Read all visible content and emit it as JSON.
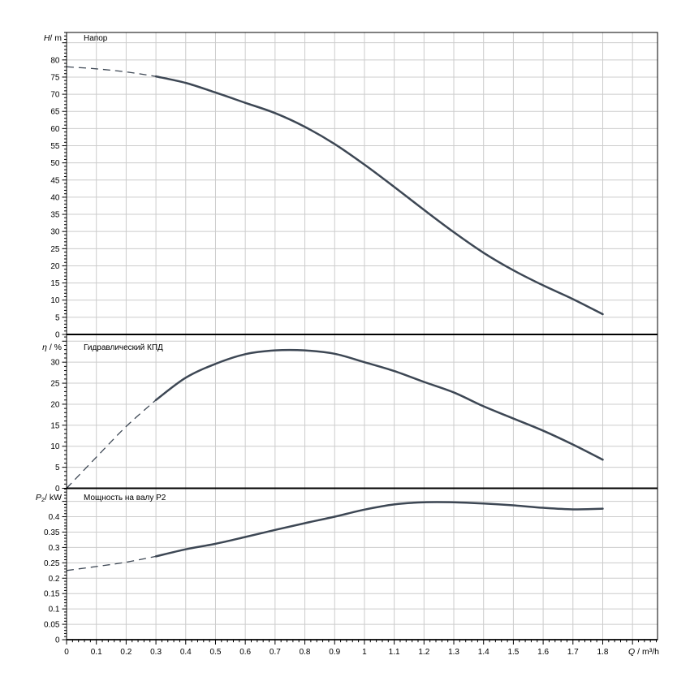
{
  "chart": {
    "background": "#ffffff",
    "curve_color": "#3d4754",
    "grid_color": "#cccccc",
    "axis_color": "#000000",
    "text_color": "#000000"
  },
  "chart_data": {
    "type": "line",
    "description": "Pump performance curves: head, hydraulic efficiency and shaft power P2 versus flow rate Q",
    "x_axis": {
      "label_symbol": "Q",
      "label_unit": " / m³/h",
      "min": 0,
      "max": 1.984,
      "major_tick": 0.1,
      "minor_tick": 0.02,
      "tick_labels": [
        "0",
        "0.1",
        "0.2",
        "0.3",
        "0.4",
        "0.5",
        "0.6",
        "0.7",
        "0.8",
        "0.9",
        "1",
        "1.1",
        "1.2",
        "1.3",
        "1.4",
        "1.5",
        "1.6",
        "1.7",
        "1.8"
      ]
    },
    "panels": [
      {
        "id": "head",
        "title": "Напор",
        "axis_symbol": "H",
        "axis_sub": "",
        "axis_unit": "/ m",
        "ylim": [
          0,
          88
        ],
        "major_tick": 5,
        "minor_tick": 1,
        "tick_labels": [
          "0",
          "5",
          "10",
          "15",
          "20",
          "25",
          "30",
          "35",
          "40",
          "45",
          "50",
          "55",
          "60",
          "65",
          "70",
          "75",
          "80"
        ],
        "series": {
          "x": [
            0,
            0.1,
            0.2,
            0.3,
            0.4,
            0.5,
            0.6,
            0.7,
            0.8,
            0.9,
            1.0,
            1.1,
            1.2,
            1.3,
            1.4,
            1.5,
            1.6,
            1.7,
            1.8
          ],
          "y": [
            78,
            77.4,
            76.5,
            75.2,
            73.3,
            70.5,
            67.5,
            64.5,
            60.5,
            55.5,
            49.5,
            43,
            36.3,
            29.8,
            23.8,
            18.7,
            14.3,
            10.3,
            5.9
          ],
          "dashed_until_x": 0.3
        }
      },
      {
        "id": "efficiency",
        "title": "Гидравлический КПД",
        "axis_symbol": "η",
        "axis_sub": "",
        "axis_unit": " / %",
        "ylim": [
          0,
          36.6
        ],
        "major_tick": 5,
        "minor_tick": 1,
        "tick_labels": [
          "0",
          "5",
          "10",
          "15",
          "20",
          "25",
          "30"
        ],
        "series": {
          "x": [
            0,
            0.1,
            0.2,
            0.3,
            0.4,
            0.5,
            0.6,
            0.7,
            0.8,
            0.9,
            1.0,
            1.1,
            1.2,
            1.3,
            1.4,
            1.5,
            1.6,
            1.7,
            1.8
          ],
          "y": [
            0,
            7.4,
            14.7,
            21,
            26.3,
            29.6,
            31.9,
            32.8,
            32.8,
            32,
            30,
            27.9,
            25.3,
            22.8,
            19.5,
            16.6,
            13.7,
            10.4,
            6.8
          ],
          "dashed_until_x": 0.3
        }
      },
      {
        "id": "power",
        "title": "Мощность на валу P2",
        "axis_symbol": "P",
        "axis_sub": "2",
        "axis_unit": "/ kW",
        "ylim": [
          0,
          0.4925
        ],
        "major_tick": 0.05,
        "minor_tick": 0.01,
        "tick_labels": [
          "0",
          "0.05",
          "0.1",
          "0.15",
          "0.2",
          "0.25",
          "0.3",
          "0.35",
          "0.4"
        ],
        "series": {
          "x": [
            0,
            0.1,
            0.2,
            0.3,
            0.4,
            0.5,
            0.6,
            0.7,
            0.8,
            0.9,
            1.0,
            1.1,
            1.2,
            1.3,
            1.4,
            1.5,
            1.6,
            1.7,
            1.8
          ],
          "y": [
            0.225,
            0.238,
            0.252,
            0.271,
            0.294,
            0.312,
            0.334,
            0.357,
            0.379,
            0.4,
            0.423,
            0.44,
            0.447,
            0.447,
            0.443,
            0.437,
            0.429,
            0.424,
            0.426
          ],
          "dashed_until_x": 0.3
        }
      }
    ]
  }
}
